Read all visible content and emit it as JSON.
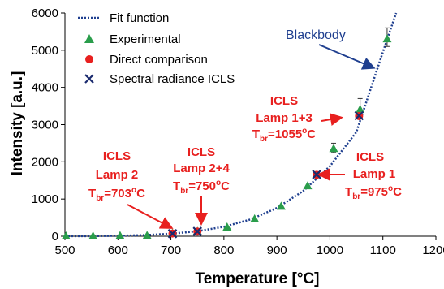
{
  "chart_data": {
    "type": "scatter",
    "xlabel": "Temperature [°C]",
    "ylabel": "Intensity [a.u.]",
    "xlim": [
      500,
      1200
    ],
    "ylim": [
      0,
      6000
    ],
    "x_ticks": [
      500,
      600,
      700,
      800,
      900,
      1000,
      1100,
      1200
    ],
    "y_ticks": [
      0,
      1000,
      2000,
      3000,
      4000,
      5000,
      6000
    ],
    "x_tick_labels": [
      "500",
      "600",
      "700",
      "800",
      "900",
      "1000",
      "1100",
      "1200"
    ],
    "y_tick_labels": [
      "0",
      "1000",
      "2000",
      "3000",
      "4000",
      "5000",
      "6000"
    ],
    "grid": false,
    "legend_position": "top-left",
    "series": [
      {
        "name": "Fit function",
        "style": "dotted-line",
        "color": "#1f3f8f",
        "x": [
          500,
          550,
          600,
          650,
          700,
          750,
          800,
          850,
          900,
          950,
          1000,
          1050,
          1100,
          1125
        ],
        "y": [
          1,
          4,
          12,
          30,
          68,
          135,
          255,
          450,
          760,
          1220,
          1880,
          2800,
          4950,
          6000
        ]
      },
      {
        "name": "Experimental",
        "marker": "triangle",
        "color": "#2a9d4b",
        "x": [
          502,
          553,
          604,
          655,
          703,
          750,
          806,
          858,
          908,
          958,
          1007,
          1057,
          1108
        ],
        "y": [
          0,
          0,
          10,
          15,
          75,
          125,
          240,
          460,
          800,
          1350,
          2350,
          3400,
          5300
        ],
        "y_err_low": [
          0,
          0,
          0,
          0,
          0,
          0,
          0,
          0,
          0,
          0,
          100,
          200,
          200
        ],
        "y_err_high": [
          0,
          0,
          0,
          0,
          0,
          0,
          0,
          0,
          0,
          0,
          150,
          300,
          300
        ]
      },
      {
        "name": "Direct comparison",
        "marker": "circle",
        "color": "#e8201f",
        "x": [
          703,
          750,
          975,
          1055
        ],
        "y": [
          75,
          125,
          1650,
          3230
        ]
      },
      {
        "name": "Spectral radiance ICLS",
        "marker": "x",
        "color": "#1a2a6e",
        "x": [
          703,
          750,
          975,
          1055
        ],
        "y": [
          70,
          130,
          1660,
          3240
        ]
      }
    ]
  },
  "annotations": {
    "blackbody": "Blackbody",
    "lamp2": {
      "line1": "ICLS",
      "line2": "Lamp 2",
      "t_prefix": "T",
      "t_sub": "br",
      "t_value": "=703",
      "t_sup": "o",
      "t_unit": "C"
    },
    "lamp24": {
      "line1": "ICLS",
      "line2": "Lamp 2+4",
      "t_prefix": "T",
      "t_sub": "br",
      "t_value": "=750",
      "t_sup": "o",
      "t_unit": "C"
    },
    "lamp13": {
      "line1": "ICLS",
      "line2": "Lamp 1+3",
      "t_prefix": "T",
      "t_sub": "br",
      "t_value": "=1055",
      "t_sup": "o",
      "t_unit": "C"
    },
    "lamp1": {
      "line1": "ICLS",
      "line2": "Lamp 1",
      "t_prefix": "T",
      "t_sub": "br",
      "t_value": "=975",
      "t_sup": "o",
      "t_unit": "C"
    }
  },
  "colors": {
    "fit": "#1f3f8f",
    "experimental": "#2a9d4b",
    "direct": "#e8201f",
    "spectral": "#1a2a6e",
    "annotation_red": "#e8201f",
    "annotation_blue": "#1f3f8f"
  }
}
